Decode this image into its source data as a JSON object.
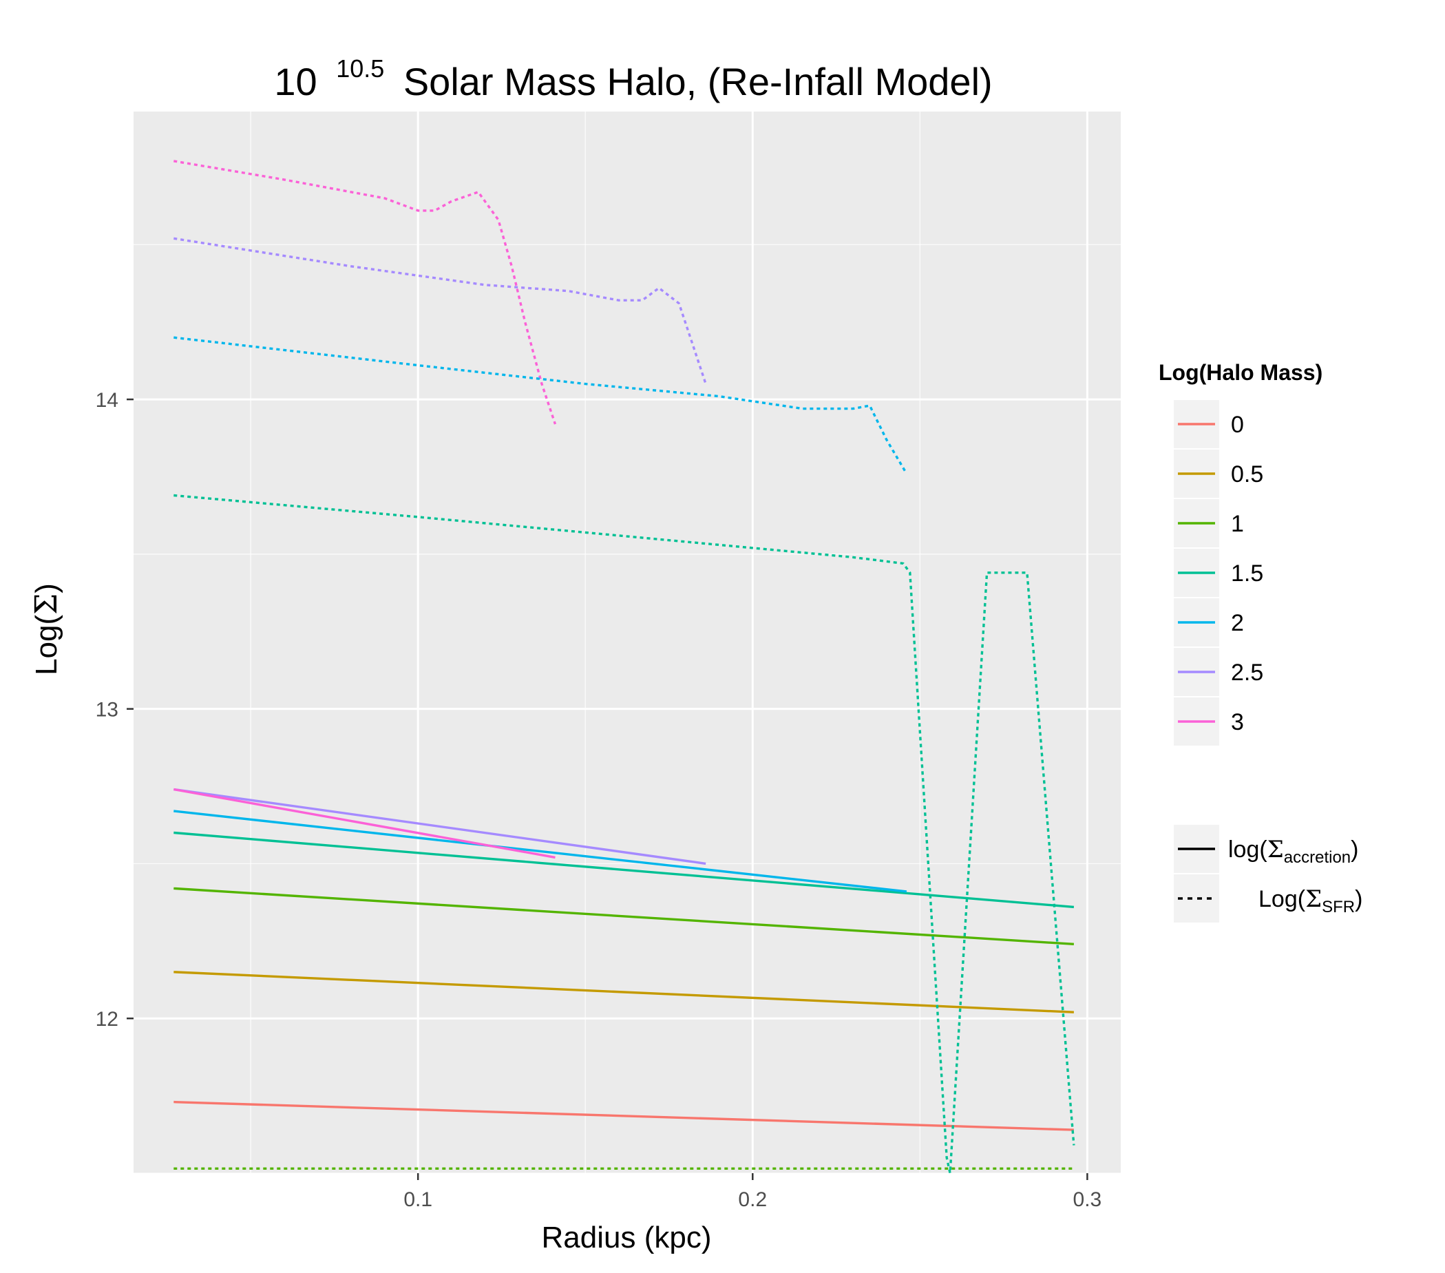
{
  "chart_data": {
    "type": "line",
    "title": {
      "base": "10",
      "exponent": "10.5",
      "rest": "Solar Mass Halo, (Re-Infall Model)"
    },
    "xlabel": "Radius (kpc)",
    "ylabel": {
      "prefix": "Log(",
      "symbol": "Σ",
      "suffix": ")"
    },
    "xlim": [
      0.015,
      0.31
    ],
    "ylim": [
      11.5,
      14.93
    ],
    "x_ticks": [
      {
        "value": 0.1,
        "label": "0.1"
      },
      {
        "value": 0.2,
        "label": "0.2"
      },
      {
        "value": 0.3,
        "label": "0.3"
      }
    ],
    "y_ticks": [
      {
        "value": 12,
        "label": "12"
      },
      {
        "value": 13,
        "label": "13"
      },
      {
        "value": 14,
        "label": "14"
      }
    ],
    "grid": true,
    "panel_background": "#ebebeb",
    "grid_color": "#ffffff",
    "legend": {
      "placement": "right",
      "color_title": "Log(Halo Mass)",
      "color_entries": [
        {
          "label": "0",
          "color": "#f8766d"
        },
        {
          "label": "0.5",
          "color": "#c49a00"
        },
        {
          "label": "1",
          "color": "#53b400"
        },
        {
          "label": "1.5",
          "color": "#00c094"
        },
        {
          "label": "2",
          "color": "#00b6eb"
        },
        {
          "label": "2.5",
          "color": "#a58aff"
        },
        {
          "label": "3",
          "color": "#fb61d7"
        }
      ],
      "linetype_entries": [
        {
          "style": "solid",
          "prefix": "log(",
          "symbol": "Σ",
          "subscript": "accretion",
          "suffix": ")"
        },
        {
          "style": "dashed",
          "prefix": "Log(",
          "symbol": "Σ",
          "subscript": "SFR",
          "suffix": ")"
        }
      ]
    },
    "series": [
      {
        "group": "0",
        "linetype": "solid",
        "color": "#f8766d",
        "x": [
          0.027,
          0.296
        ],
        "y": [
          11.73,
          11.64
        ]
      },
      {
        "group": "0.5",
        "linetype": "solid",
        "color": "#c49a00",
        "x": [
          0.027,
          0.296
        ],
        "y": [
          12.15,
          12.02
        ]
      },
      {
        "group": "1",
        "linetype": "solid",
        "color": "#53b400",
        "x": [
          0.027,
          0.296
        ],
        "y": [
          12.42,
          12.24
        ]
      },
      {
        "group": "1.5",
        "linetype": "solid",
        "color": "#00c094",
        "x": [
          0.027,
          0.296
        ],
        "y": [
          12.6,
          12.36
        ]
      },
      {
        "group": "2",
        "linetype": "solid",
        "color": "#00b6eb",
        "x": [
          0.027,
          0.246
        ],
        "y": [
          12.67,
          12.41
        ]
      },
      {
        "group": "2.5",
        "linetype": "solid",
        "color": "#a58aff",
        "x": [
          0.027,
          0.186
        ],
        "y": [
          12.74,
          12.5
        ]
      },
      {
        "group": "3",
        "linetype": "solid",
        "color": "#fb61d7",
        "x": [
          0.027,
          0.141
        ],
        "y": [
          12.74,
          12.52
        ]
      },
      {
        "group": "3",
        "linetype": "dashed",
        "color": "#fb61d7",
        "x": [
          0.027,
          0.06,
          0.09,
          0.1,
          0.105,
          0.11,
          0.118,
          0.124,
          0.128,
          0.132,
          0.137,
          0.141
        ],
        "y": [
          14.77,
          14.71,
          14.65,
          14.61,
          14.61,
          14.64,
          14.67,
          14.58,
          14.43,
          14.25,
          14.05,
          13.92
        ]
      },
      {
        "group": "2.5",
        "linetype": "dashed",
        "color": "#a58aff",
        "x": [
          0.027,
          0.08,
          0.12,
          0.145,
          0.16,
          0.167,
          0.172,
          0.178,
          0.182,
          0.186
        ],
        "y": [
          14.52,
          14.43,
          14.37,
          14.35,
          14.32,
          14.32,
          14.36,
          14.31,
          14.18,
          14.05
        ]
      },
      {
        "group": "2",
        "linetype": "dashed",
        "color": "#00b6eb",
        "x": [
          0.027,
          0.1,
          0.15,
          0.19,
          0.215,
          0.225,
          0.23,
          0.235,
          0.24,
          0.246
        ],
        "y": [
          14.2,
          14.11,
          14.05,
          14.01,
          13.97,
          13.97,
          13.97,
          13.98,
          13.87,
          13.76
        ]
      },
      {
        "group": "1.5",
        "linetype": "dashed",
        "color": "#00c094",
        "x": [
          0.027,
          0.1,
          0.15,
          0.2,
          0.23,
          0.245,
          0.247,
          0.258,
          0.259,
          0.27,
          0.282,
          0.296
        ],
        "y": [
          13.69,
          13.62,
          13.57,
          13.52,
          13.49,
          13.47,
          13.44,
          11.55,
          11.5,
          13.44,
          13.44,
          11.59
        ]
      },
      {
        "group": "1",
        "linetype": "dashed",
        "color": "#53b400",
        "x": [
          0.027,
          0.296
        ],
        "y": [
          11.515,
          11.515
        ]
      }
    ]
  }
}
